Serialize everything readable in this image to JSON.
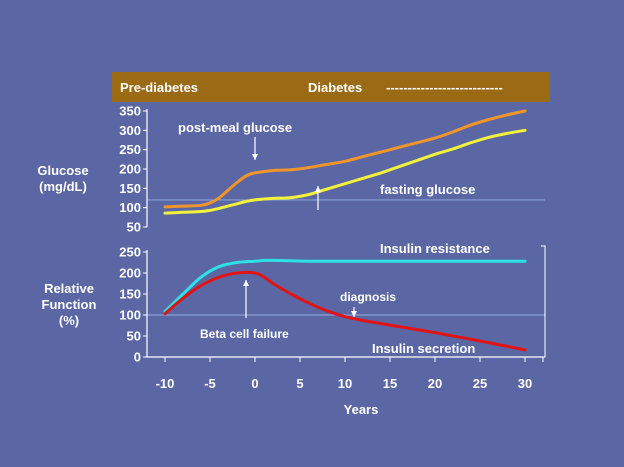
{
  "header": {
    "prediabetes_label": "Pre-diabetes",
    "diabetes_label": "Diabetes",
    "dashes": "---------------------------",
    "bar_color": "#9a6a14"
  },
  "chart_data": [
    {
      "type": "line",
      "ylabel": "Glucose (mg/dL)",
      "ylabel_lines": [
        "Glucose",
        "(mg/dL)"
      ],
      "ylim": [
        50,
        350
      ],
      "yticks": [
        50,
        100,
        150,
        200,
        250,
        300,
        350
      ],
      "xlim": [
        -12,
        32
      ],
      "reference_line": {
        "y": 120,
        "color": "#8aa0d8"
      },
      "series": [
        {
          "name": "post-meal glucose",
          "color": "#f0952a",
          "x": [
            -10,
            -8,
            -6,
            -5,
            -4,
            -3,
            -2,
            -1,
            0,
            2,
            4,
            6,
            8,
            10,
            12,
            14,
            16,
            18,
            20,
            22,
            24,
            26,
            28,
            30
          ],
          "y": [
            102,
            104,
            106,
            112,
            125,
            145,
            165,
            182,
            190,
            196,
            198,
            204,
            212,
            220,
            232,
            244,
            256,
            268,
            280,
            296,
            314,
            328,
            340,
            350
          ]
        },
        {
          "name": "fasting glucose",
          "color": "#f2f23a",
          "x": [
            -10,
            -8,
            -6,
            -5,
            -4,
            -3,
            -2,
            -1,
            0,
            2,
            4,
            6,
            8,
            10,
            12,
            14,
            16,
            18,
            20,
            22,
            24,
            26,
            28,
            30
          ],
          "y": [
            86,
            88,
            90,
            93,
            98,
            104,
            110,
            116,
            120,
            124,
            126,
            134,
            148,
            162,
            176,
            190,
            206,
            222,
            238,
            252,
            268,
            282,
            292,
            300
          ]
        }
      ],
      "annotations": [
        {
          "text": "post-meal glucose",
          "arrow_x": 0
        },
        {
          "text": "fasting glucose",
          "arrow_x": 7
        }
      ]
    },
    {
      "type": "line",
      "ylabel": "Relative Function (%)",
      "ylabel_lines": [
        "Relative",
        "Function",
        "(%)"
      ],
      "ylim": [
        0,
        250
      ],
      "yticks": [
        0,
        50,
        100,
        150,
        200,
        250
      ],
      "xlim": [
        -12,
        32
      ],
      "xticks": [
        -10,
        -5,
        0,
        5,
        10,
        15,
        20,
        25,
        30
      ],
      "xlabel": "Years",
      "reference_line": {
        "y": 100,
        "color": "#8aa0d8"
      },
      "series": [
        {
          "name": "Insulin resistance",
          "color": "#2ee0e8",
          "x": [
            -10,
            -8,
            -6,
            -4,
            -2,
            0,
            1,
            2,
            4,
            6,
            10,
            15,
            20,
            25,
            30
          ],
          "y": [
            108,
            150,
            190,
            215,
            225,
            228,
            230,
            230,
            229,
            228,
            228,
            228,
            228,
            228,
            228
          ]
        },
        {
          "name": "Insulin secretion",
          "color": "#e01414",
          "x": [
            -10,
            -8,
            -6,
            -4,
            -2,
            0,
            1,
            2,
            4,
            6,
            8,
            10,
            12,
            15,
            20,
            25,
            30
          ],
          "y": [
            103,
            140,
            170,
            190,
            200,
            200,
            190,
            175,
            150,
            128,
            110,
            96,
            87,
            76,
            58,
            38,
            17
          ]
        }
      ],
      "annotations": [
        {
          "text": "Beta cell failure",
          "arrow_x": -1
        },
        {
          "text": "diagnosis",
          "arrow_x": 11
        }
      ]
    }
  ]
}
